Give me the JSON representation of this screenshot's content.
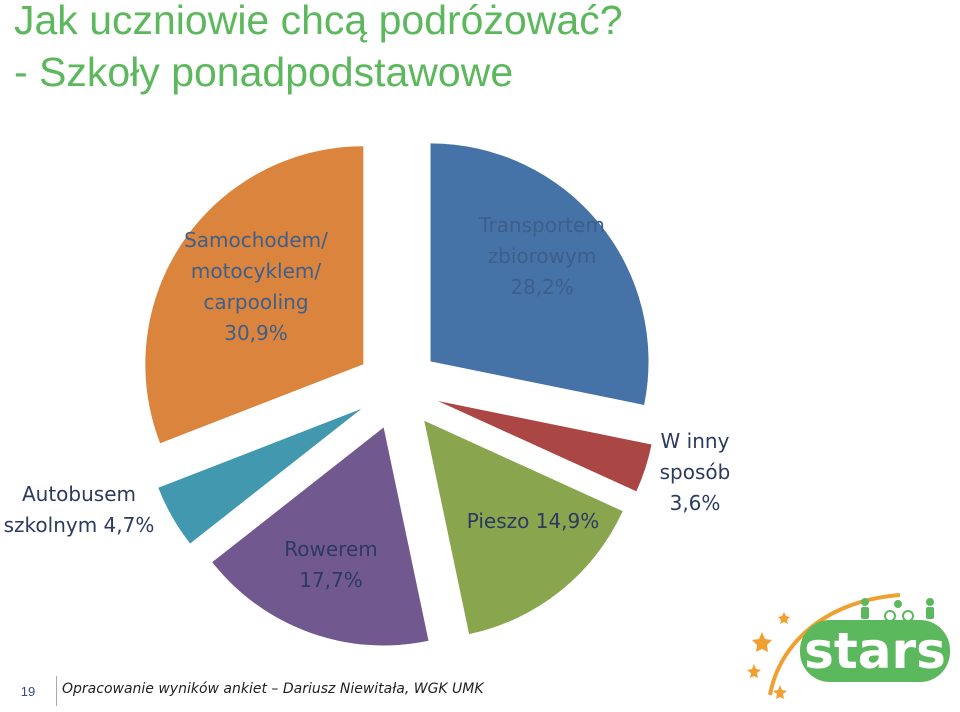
{
  "header": {
    "title_line1": "Jak uczniowie chcą podróżować?",
    "title_line2": "- Szkoły ponadpodstawowe"
  },
  "chart_data": {
    "type": "pie",
    "exploded": true,
    "slices": [
      {
        "label": "Transportem\nzbiorowym\n28,2%",
        "value": 28.2,
        "color": "#4572a7",
        "text_color": "#3d5f8a"
      },
      {
        "label": "W inny\nsposób\n3,6%",
        "value": 3.6,
        "color": "#aa4643",
        "text_color": "#2c3a60"
      },
      {
        "label": "Pieszo 14,9%",
        "value": 14.9,
        "color": "#89a54e",
        "text_color": "#2c3a60"
      },
      {
        "label": "Rowerem\n17,7%",
        "value": 17.7,
        "color": "#71588f",
        "text_color": "#2c3a60"
      },
      {
        "label": "Autobusem\nszkolnym 4,7%",
        "value": 4.7,
        "color": "#4198af",
        "text_color": "#2c3a60"
      },
      {
        "label": "Samochodem/\nmotocyklem/\ncarpooling\n30,9%",
        "value": 30.9,
        "color": "#db843d",
        "text_color": "#3d5f8a"
      }
    ]
  },
  "footer": {
    "page_number": "19",
    "note": "Opracowanie wyników ankiet – Dariusz Niewitała, WGK UMK"
  },
  "logo": {
    "text": "stars",
    "colors": {
      "green": "#5cb85c",
      "orange": "#f0a030"
    }
  }
}
